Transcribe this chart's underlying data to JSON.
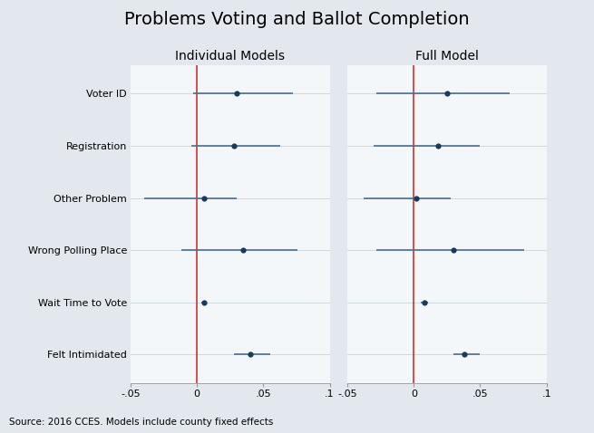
{
  "title": "Problems Voting and Ballot Completion",
  "subtitle_left": "Individual Models",
  "subtitle_right": "Full Model",
  "source": "Source: 2016 CCES. Models include county fixed effects",
  "categories": [
    "Voter ID",
    "Registration",
    "Other Problem",
    "Wrong Polling Place",
    "Wait Time to Vote",
    "Felt Intimidated"
  ],
  "individual_models": {
    "points": [
      0.03,
      0.028,
      0.005,
      0.035,
      0.005,
      0.04
    ],
    "ci_low": [
      -0.003,
      -0.004,
      -0.04,
      -0.012,
      0.003,
      0.028
    ],
    "ci_high": [
      0.072,
      0.063,
      0.03,
      0.076,
      0.007,
      0.055
    ]
  },
  "full_models": {
    "points": [
      0.025,
      0.018,
      0.002,
      0.03,
      0.008,
      0.038
    ],
    "ci_low": [
      -0.028,
      -0.03,
      -0.038,
      -0.028,
      0.005,
      0.03
    ],
    "ci_high": [
      0.072,
      0.05,
      0.028,
      0.083,
      0.011,
      0.05
    ]
  },
  "xlim": [
    -0.05,
    0.1
  ],
  "xticks": [
    -0.05,
    0,
    0.05,
    0.1
  ],
  "xticklabels": [
    "-.05",
    "0",
    ".05",
    ".1"
  ],
  "dot_color": "#1a3a5c",
  "ci_color": "#4a6e90",
  "vline_color": "#cc2222",
  "bg_color": "#e2e8ee",
  "panel_bg": "#f4f7fa",
  "grid_color": "#c8d4dc",
  "title_fontsize": 14,
  "subtitle_fontsize": 10,
  "label_fontsize": 8,
  "tick_fontsize": 8,
  "source_fontsize": 7.5
}
